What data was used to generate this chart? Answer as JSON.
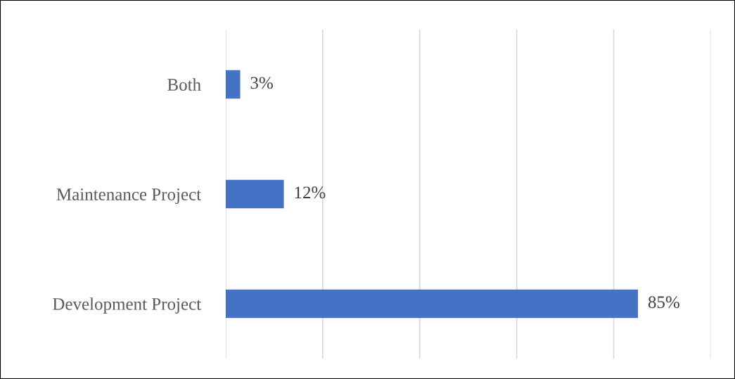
{
  "chart_data": {
    "type": "bar",
    "orientation": "horizontal",
    "categories": [
      "Both",
      "Maintenance Project",
      "Development Project"
    ],
    "values": [
      3,
      12,
      85
    ],
    "color": "#4472c4",
    "value_labels": [
      "3%",
      "12%",
      "85%"
    ],
    "xlim": [
      0,
      100
    ],
    "xticks": [
      {
        "value": 0,
        "label": null
      },
      {
        "value": 20,
        "label": null
      },
      {
        "value": 40,
        "label": null
      },
      {
        "value": 60,
        "label": null
      },
      {
        "value": 80,
        "label": null
      },
      {
        "value": 100,
        "label": null
      }
    ],
    "grid": "x",
    "tick_labels": "y"
  }
}
